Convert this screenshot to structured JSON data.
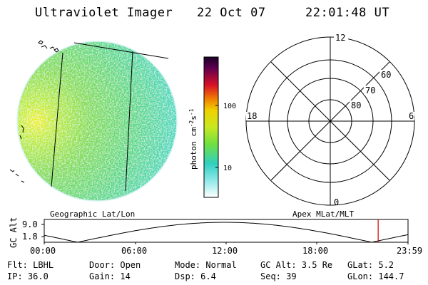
{
  "header": {
    "instrument": "Ultraviolet Imager",
    "date": "22 Oct 07",
    "time": "22:01:48 UT"
  },
  "image_panel": {
    "caption": "Geographic Lat/Lon"
  },
  "colorbar": {
    "unit_prefix": "photon cm",
    "exp1": "-2",
    "unit_mid": "s",
    "exp2": "-1",
    "tick_labels": [
      "100",
      "10"
    ],
    "colors": {
      "top": "#220030",
      "high": "#d81020",
      "mid": "#f0a000",
      "green": "#a0e030",
      "low": "#30d8c8",
      "bottom": "#ffffff"
    }
  },
  "polar_plot": {
    "caption": "Apex MLat/MLT",
    "mlt_labels": {
      "top": "12",
      "left": "18",
      "right": "6",
      "bottom": "0"
    },
    "mlat_labels": [
      "60",
      "70",
      "80"
    ]
  },
  "timeline": {
    "ylabel": "GC Alt",
    "y_ticks": [
      "9.0",
      "1.8"
    ],
    "x_ticks": [
      "00:00",
      "06:00",
      "12:00",
      "18:00",
      "23:59"
    ],
    "current_time_hours": 22.03,
    "marker_color": "#d00000"
  },
  "footer": {
    "filter": "Flt: LBHL",
    "door": "Door: Open",
    "mode": "Mode: Normal",
    "gc_alt": "GC Alt: 3.5 Re",
    "glat": "GLat:  5.2",
    "ip": "IP: 36.0",
    "gain": "Gain: 14",
    "dsp": "Dsp:    6.4",
    "seq": "Seq: 39",
    "glon": "GLon: 144.7"
  }
}
